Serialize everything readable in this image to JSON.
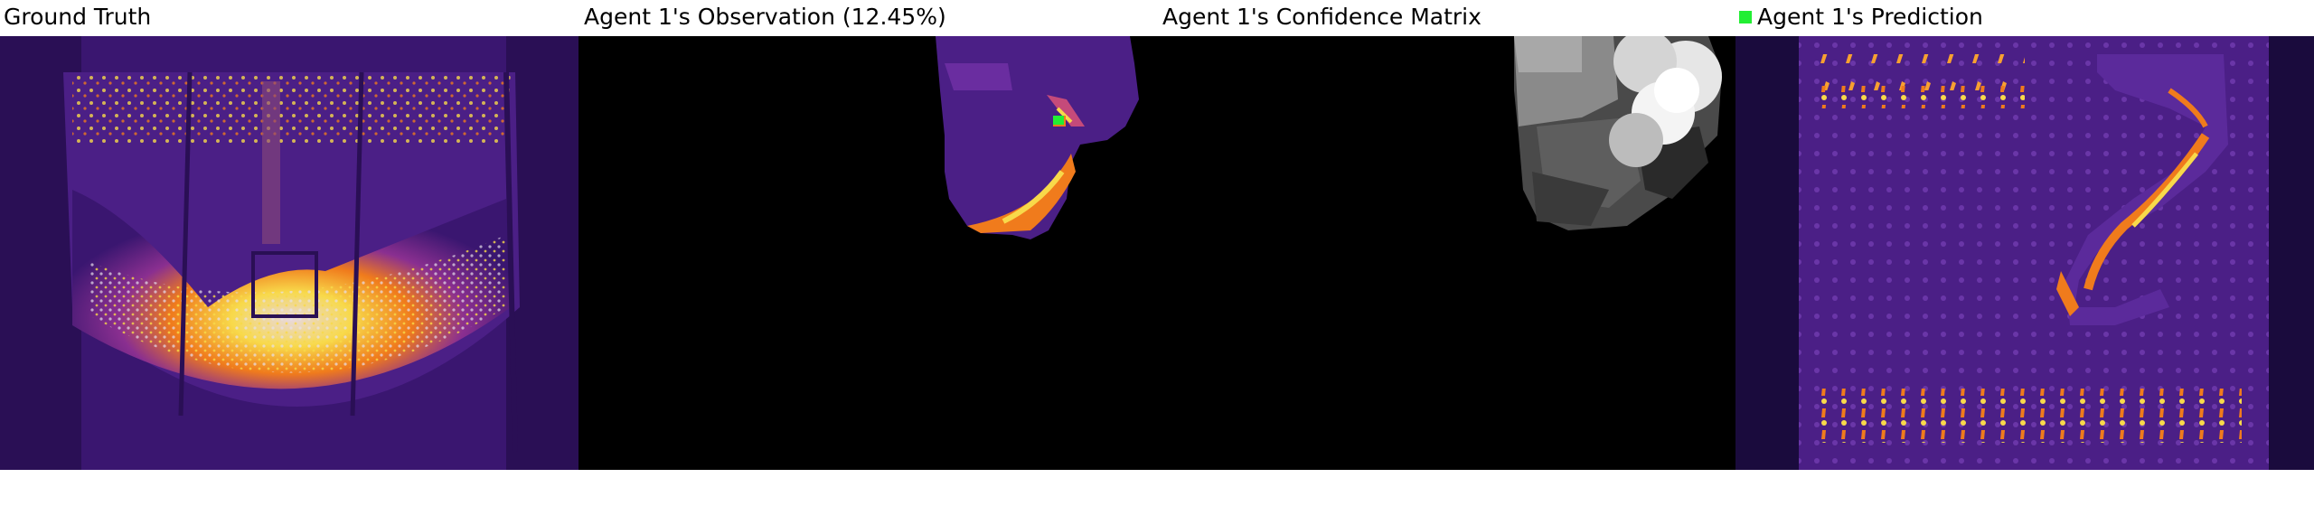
{
  "panels": {
    "ground_truth": {
      "title": "Ground Truth"
    },
    "observation": {
      "title": "Agent 1's Observation (12.45%)"
    },
    "confidence": {
      "title": "Agent 1's Confidence Matrix"
    },
    "prediction": {
      "title": "Agent 1's Prediction"
    }
  },
  "legend": {
    "agent_color": "#22ee33"
  },
  "colors": {
    "background": "#ffffff",
    "heat_dark": "#1a0b3d",
    "heat_purple": "#5b2a9b",
    "heat_orange": "#f07b1c",
    "heat_yellow": "#f8d94a",
    "heat_white": "#d8d0e0"
  }
}
